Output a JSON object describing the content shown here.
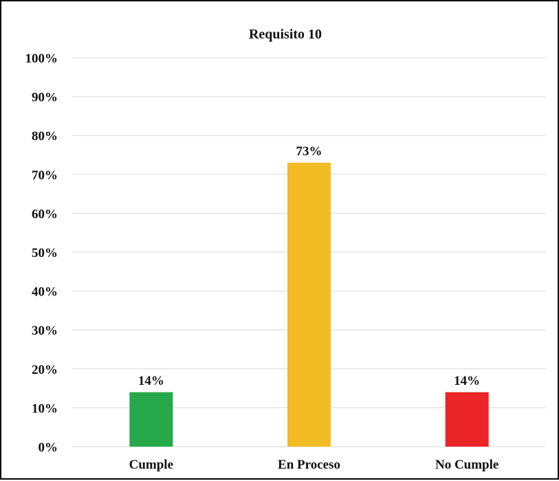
{
  "chart_data": {
    "type": "bar",
    "title": "Requisito 10",
    "categories": [
      "Cumple",
      "En Proceso",
      "No Cumple"
    ],
    "values": [
      14,
      73,
      14
    ],
    "value_labels": [
      "14%",
      "73%",
      "14%"
    ],
    "colors": [
      "#27a84b",
      "#f4bc24",
      "#ea2427"
    ],
    "ylim": [
      0,
      100
    ],
    "yticks": [
      "0%",
      "10%",
      "20%",
      "30%",
      "40%",
      "50%",
      "60%",
      "70%",
      "80%",
      "90%",
      "100%"
    ],
    "grid": true,
    "legend": false
  }
}
